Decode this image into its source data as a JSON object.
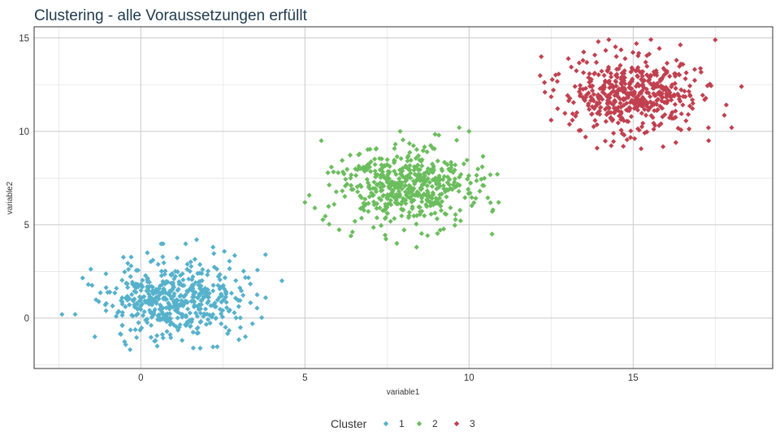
{
  "chart_data": {
    "type": "scatter",
    "title": "Clustering - alle Voraussetzungen erfüllt",
    "xlabel": "variable1",
    "ylabel": "variable2",
    "xlim": [
      -3.25,
      19.25
    ],
    "ylim": [
      -2.7,
      15.6
    ],
    "x_ticks": [
      0,
      5,
      10,
      15
    ],
    "y_ticks": [
      0,
      5,
      10,
      15
    ],
    "grid": true,
    "legend": {
      "title": "Cluster",
      "position": "bottom"
    },
    "marker": "diamond",
    "series": [
      {
        "name": "1",
        "color": "#56B1CB",
        "n_points": 500,
        "center": [
          1.0,
          1.0
        ],
        "sd": [
          1.0,
          1.0
        ],
        "seed": 11,
        "points": [
          [
            -2.4,
            0.2
          ],
          [
            -2.0,
            0.2
          ],
          [
            -1.6,
            1.8
          ],
          [
            -1.4,
            -1.0
          ],
          [
            4.3,
            2.0
          ],
          [
            3.8,
            3.4
          ],
          [
            1.7,
            4.2
          ],
          [
            1.6,
            -1.6
          ],
          [
            0.5,
            -1.5
          ],
          [
            3.4,
            -0.3
          ],
          [
            0.2,
            3.5
          ],
          [
            2.2,
            3.8
          ]
        ]
      },
      {
        "name": "2",
        "color": "#6BBD5D",
        "n_points": 500,
        "center": [
          8.0,
          7.0
        ],
        "sd": [
          1.0,
          1.0
        ],
        "seed": 23,
        "points": [
          [
            5.0,
            6.2
          ],
          [
            5.5,
            9.5
          ],
          [
            9.7,
            10.2
          ],
          [
            7.9,
            10.0
          ],
          [
            6.4,
            4.4
          ],
          [
            7.8,
            4.0
          ],
          [
            8.4,
            3.8
          ],
          [
            10.7,
            4.5
          ],
          [
            10.9,
            6.2
          ],
          [
            10.0,
            10.0
          ],
          [
            10.4,
            8.1
          ]
        ]
      },
      {
        "name": "3",
        "color": "#C1404F",
        "n_points": 500,
        "center": [
          15.0,
          12.0
        ],
        "sd": [
          1.0,
          1.0
        ],
        "seed": 37,
        "points": [
          [
            12.2,
            14.0
          ],
          [
            12.5,
            10.6
          ],
          [
            15.1,
            14.7
          ],
          [
            17.5,
            14.9
          ],
          [
            18.0,
            10.2
          ],
          [
            18.3,
            12.4
          ],
          [
            17.3,
            9.5
          ],
          [
            13.9,
            9.1
          ],
          [
            14.7,
            9.2
          ],
          [
            16.3,
            9.4
          ]
        ]
      }
    ]
  }
}
